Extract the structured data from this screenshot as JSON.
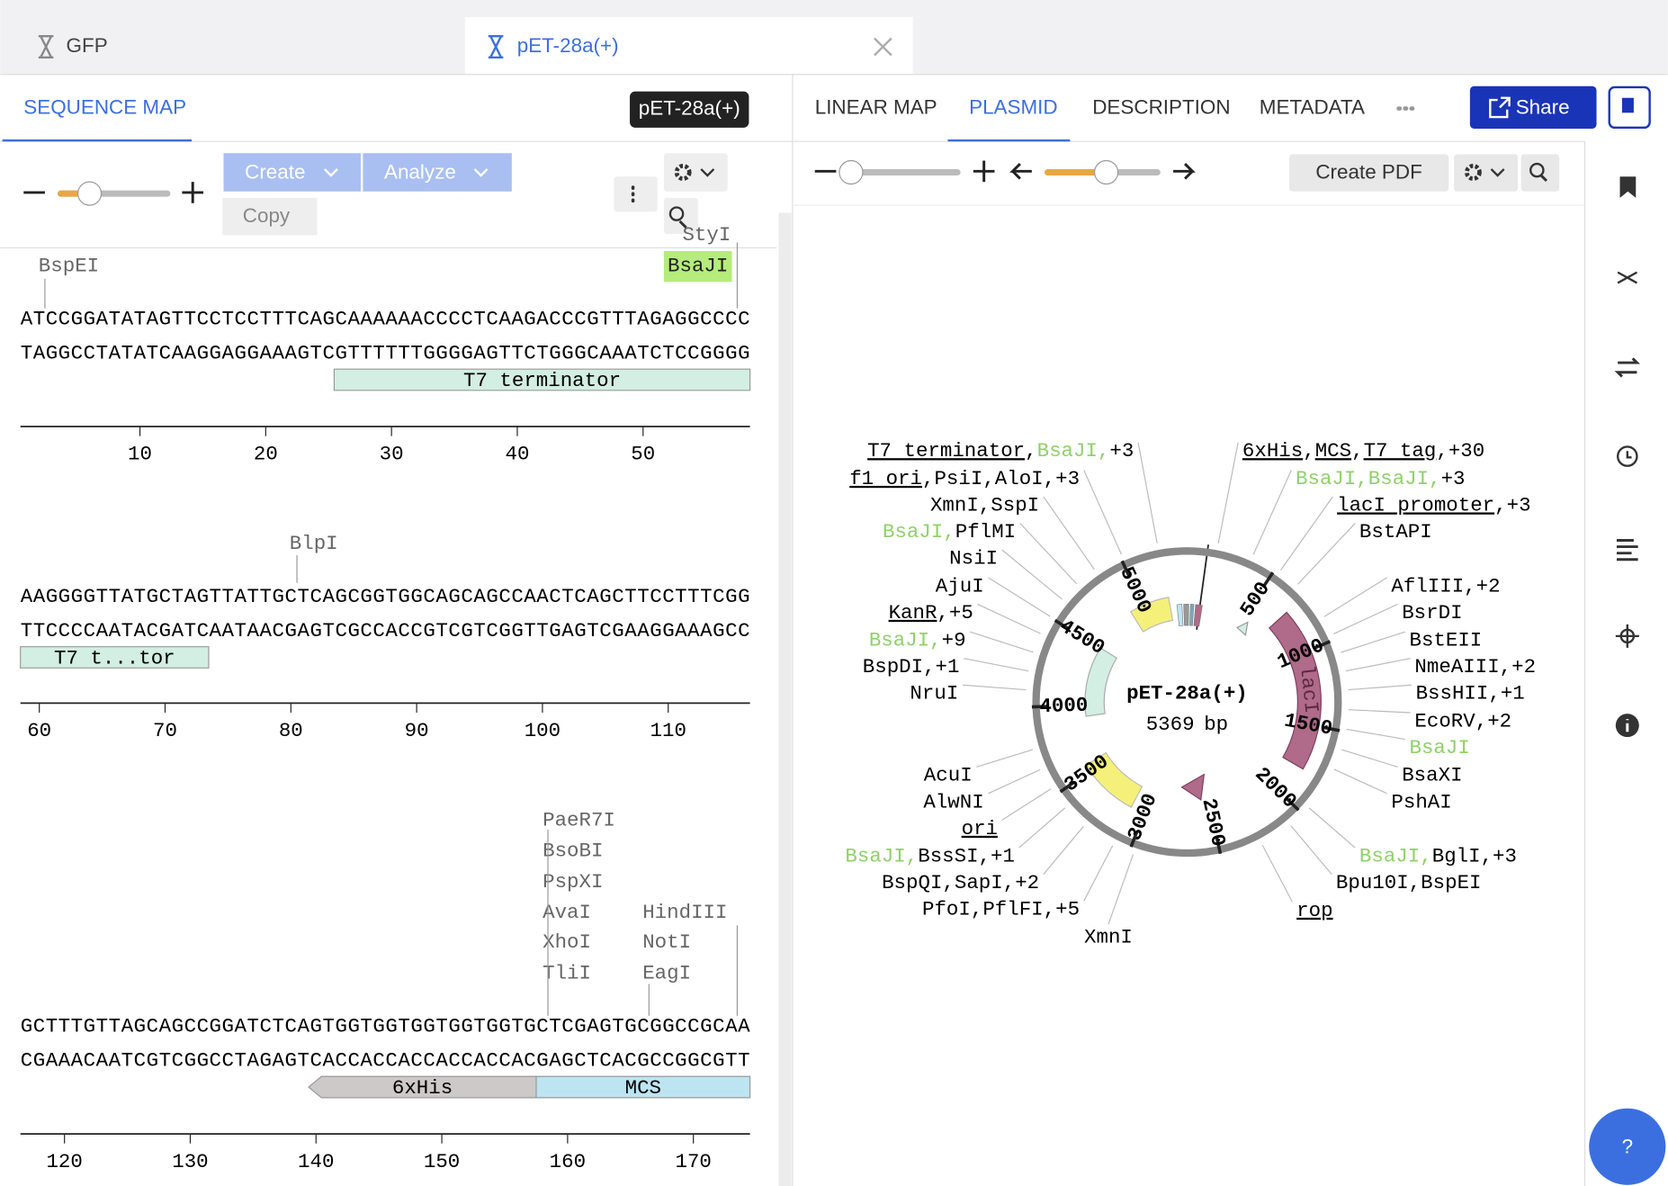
{
  "tabs": [
    {
      "label": "GFP"
    },
    {
      "label": "pET-28a(+)"
    }
  ],
  "sequence_panel": {
    "tab": "SEQUENCE MAP",
    "badge": "pET-28a(+)",
    "buttons": {
      "create": "Create",
      "analyze": "Analyze",
      "copy": "Copy"
    },
    "rows": [
      {
        "enzymes": [
          {
            "label": "BspEI"
          },
          {
            "label": "StyI"
          },
          {
            "label": "BsaJI",
            "highlight": true
          }
        ],
        "top": "ATCCGGATATAGTTCCTCCTTTCAGCAAAAAACCCCTCAAGACCCGTTTAGAGGCCCC",
        "bottom": "TAGGCCTATATCAAGGAGGAAAGTCGTTTTTTGGGGAGTTCTGGGCAAATCTCCGGGG",
        "features": [
          {
            "label": "T7 terminator",
            "color": "#d3eee2"
          }
        ],
        "ruler": [
          10,
          20,
          30,
          40,
          50
        ]
      },
      {
        "enzymes": [
          {
            "label": "BlpI"
          }
        ],
        "top": "AAGGGGTTATGCTAGTTATTGCTCAGCGGTGGCAGCAGCCAACTCAGCTTCCTTTCGG",
        "bottom": "TTCCCCAATACGATCAATAACGAGTCGCCACCGTCGTCGGTTGAGTCGAAGGAAAGCC",
        "features": [
          {
            "label": "T7 t...tor",
            "color": "#d3eee2"
          }
        ],
        "ruler": [
          60,
          70,
          80,
          90,
          100,
          110
        ]
      },
      {
        "enzymes": [
          {
            "label": "PaeR7I"
          },
          {
            "label": "BsoBI"
          },
          {
            "label": "PspXI"
          },
          {
            "label": "AvaI"
          },
          {
            "label": "XhoI"
          },
          {
            "label": "TliI"
          },
          {
            "label": "HindIII"
          },
          {
            "label": "NotI"
          },
          {
            "label": "EagI"
          }
        ],
        "top": "GCTTTGTTAGCAGCCGGATCTCAGTGGTGGTGGTGGTGGTGCTCGAGTGCGGCCGCAA",
        "bottom": "CGAAACAATCGTCGGCCTAGAGTCACCACCACCACCACCACGAGCTCACGCCGGCGTT",
        "features": [
          {
            "label": "6xHis",
            "color": "#cdc9c9"
          },
          {
            "label": "MCS",
            "color": "#bde4f1"
          }
        ],
        "ruler": [
          120,
          130,
          140,
          150,
          160,
          170
        ]
      }
    ]
  },
  "plasmid_panel": {
    "tabs": [
      "LINEAR MAP",
      "PLASMID",
      "DESCRIPTION",
      "METADATA"
    ],
    "share": "Share",
    "create_pdf": "Create PDF",
    "map": {
      "name": "pET-28a(+)",
      "length": 5369,
      "unit": "bp",
      "ticks": [
        500,
        1000,
        1500,
        2000,
        2500,
        3000,
        3500,
        4000,
        4500,
        5000
      ],
      "feature_label": "lacI",
      "left_labels": [
        [
          {
            "text": "T7 terminator",
            "style": "underline"
          },
          {
            "text": ","
          },
          {
            "text": "BsaJI,",
            "style": "green"
          },
          {
            "text": "+3"
          }
        ],
        [
          {
            "text": "f1 ori",
            "style": "underline"
          },
          {
            "text": ",PsiI,AloI,+3"
          }
        ],
        [
          {
            "text": "XmnI,SspI"
          }
        ],
        [
          {
            "text": "BsaJI,",
            "style": "green"
          },
          {
            "text": "PflMI"
          }
        ],
        [
          {
            "text": "NsiI"
          }
        ],
        [
          {
            "text": "AjuI"
          }
        ],
        [
          {
            "text": "KanR",
            "style": "underline"
          },
          {
            "text": ",+5"
          }
        ],
        [
          {
            "text": "BsaJI,",
            "style": "green"
          },
          {
            "text": "+9"
          }
        ],
        [
          {
            "text": "BspDI,+1"
          }
        ],
        [
          {
            "text": "NruI"
          }
        ],
        [
          {
            "text": "AcuI"
          }
        ],
        [
          {
            "text": "AlwNI"
          }
        ],
        [
          {
            "text": "ori",
            "style": "underline"
          }
        ],
        [
          {
            "text": "BsaJI,",
            "style": "green"
          },
          {
            "text": "BssSI,+1"
          }
        ],
        [
          {
            "text": "BspQI,SapI,+2"
          }
        ],
        [
          {
            "text": "PfoI,PflFI,+5"
          }
        ],
        [
          {
            "text": "XmnI"
          }
        ]
      ],
      "right_labels": [
        [
          {
            "text": "6xHis",
            "style": "underline"
          },
          {
            "text": ","
          },
          {
            "text": "MCS",
            "style": "underline"
          },
          {
            "text": ","
          },
          {
            "text": "T7 tag",
            "style": "underline"
          },
          {
            "text": ",+30"
          }
        ],
        [
          {
            "text": "BsaJI,BsaJI,",
            "style": "green"
          },
          {
            "text": "+3"
          }
        ],
        [
          {
            "text": "lacI promoter",
            "style": "underline"
          },
          {
            "text": ",+3"
          }
        ],
        [
          {
            "text": "BstAPI"
          }
        ],
        [
          {
            "text": "AflIII,+2"
          }
        ],
        [
          {
            "text": "BsrDI"
          }
        ],
        [
          {
            "text": "BstEII"
          }
        ],
        [
          {
            "text": "NmeAIII,+2"
          }
        ],
        [
          {
            "text": "BssHII,+1"
          }
        ],
        [
          {
            "text": "EcoRV,+2"
          }
        ],
        [
          {
            "text": "BsaJI",
            "style": "green"
          }
        ],
        [
          {
            "text": "BsaXI"
          }
        ],
        [
          {
            "text": "PshAI"
          }
        ],
        [
          {
            "text": "BsaJI,",
            "style": "green"
          },
          {
            "text": "BglI,+3"
          }
        ],
        [
          {
            "text": "Bpu10I,BspEI"
          }
        ],
        [
          {
            "text": "rop",
            "style": "underline"
          }
        ]
      ]
    }
  },
  "help": "?"
}
